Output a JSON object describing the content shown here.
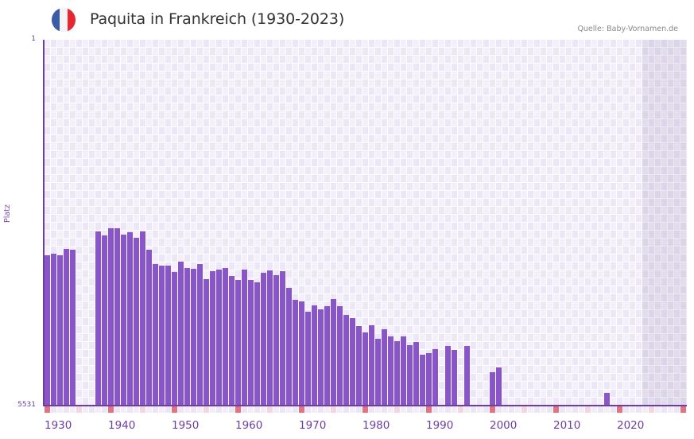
{
  "header": {
    "title": "Paquita in Frankreich (1930-2023)",
    "source": "Quelle: Baby-Vornamen.de",
    "flag": {
      "name": "france-flag",
      "colors": [
        "#3a5ba8",
        "#f4f4f6",
        "#e8262f"
      ]
    }
  },
  "colors": {
    "bar": "#8a55c8",
    "axis": "#6b3fa0",
    "grid_a": "#f3effb",
    "grid_b": "#ece6f7",
    "gridline": "#ffffff",
    "marker_decade": "#e5737f",
    "marker_half": "#f4d6e0",
    "marker_other_a": "#f1edf9",
    "marker_other_b": "#ebe5f6",
    "future_shade": "#e4e0ec"
  },
  "chart_data": {
    "type": "bar",
    "title": "Paquita in Frankreich (1930-2023)",
    "source": "Quelle: Baby-Vornamen.de",
    "xlabel": "",
    "ylabel": "Platz",
    "y_scale": "log (inverted rank)",
    "ylim": [
      5531,
      1
    ],
    "y_tick_labels": [
      "1",
      "5531"
    ],
    "x_range": [
      1930,
      2030
    ],
    "x_tick_labels": [
      "1930",
      "1940",
      "1950",
      "1960",
      "1970",
      "1980",
      "1990",
      "2000",
      "2010",
      "2020"
    ],
    "future_shaded_from": 2024,
    "grid": true,
    "legend": null,
    "points": [
      {
        "year": 1930,
        "rank": 160
      },
      {
        "year": 1931,
        "rank": 154
      },
      {
        "year": 1932,
        "rank": 160
      },
      {
        "year": 1933,
        "rank": 138
      },
      {
        "year": 1934,
        "rank": 141
      },
      {
        "year": 1938,
        "rank": 91
      },
      {
        "year": 1939,
        "rank": 100
      },
      {
        "year": 1940,
        "rank": 85
      },
      {
        "year": 1941,
        "rank": 85
      },
      {
        "year": 1942,
        "rank": 98
      },
      {
        "year": 1943,
        "rank": 93
      },
      {
        "year": 1944,
        "rank": 106
      },
      {
        "year": 1945,
        "rank": 91
      },
      {
        "year": 1946,
        "rank": 141
      },
      {
        "year": 1947,
        "rank": 197
      },
      {
        "year": 1948,
        "rank": 205
      },
      {
        "year": 1949,
        "rank": 205
      },
      {
        "year": 1950,
        "rank": 238
      },
      {
        "year": 1951,
        "rank": 186
      },
      {
        "year": 1952,
        "rank": 216
      },
      {
        "year": 1953,
        "rank": 220
      },
      {
        "year": 1954,
        "rank": 197
      },
      {
        "year": 1955,
        "rank": 281
      },
      {
        "year": 1956,
        "rank": 233
      },
      {
        "year": 1957,
        "rank": 225
      },
      {
        "year": 1958,
        "rank": 216
      },
      {
        "year": 1959,
        "rank": 261
      },
      {
        "year": 1960,
        "rank": 287
      },
      {
        "year": 1961,
        "rank": 225
      },
      {
        "year": 1962,
        "rank": 287
      },
      {
        "year": 1963,
        "rank": 303
      },
      {
        "year": 1964,
        "rank": 242
      },
      {
        "year": 1965,
        "rank": 229
      },
      {
        "year": 1966,
        "rank": 256
      },
      {
        "year": 1967,
        "rank": 233
      },
      {
        "year": 1968,
        "rank": 346
      },
      {
        "year": 1969,
        "rank": 458
      },
      {
        "year": 1970,
        "rank": 475
      },
      {
        "year": 1971,
        "rank": 606
      },
      {
        "year": 1972,
        "rank": 522
      },
      {
        "year": 1973,
        "rank": 573
      },
      {
        "year": 1974,
        "rank": 531
      },
      {
        "year": 1975,
        "rank": 449
      },
      {
        "year": 1976,
        "rank": 531
      },
      {
        "year": 1977,
        "rank": 653
      },
      {
        "year": 1978,
        "rank": 704
      },
      {
        "year": 1979,
        "rank": 850
      },
      {
        "year": 1980,
        "rank": 987
      },
      {
        "year": 1981,
        "rank": 834
      },
      {
        "year": 1982,
        "rank": 1147
      },
      {
        "year": 1983,
        "rank": 916
      },
      {
        "year": 1984,
        "rank": 1084
      },
      {
        "year": 1985,
        "rank": 1213
      },
      {
        "year": 1986,
        "rank": 1084
      },
      {
        "year": 1987,
        "rank": 1332
      },
      {
        "year": 1988,
        "rank": 1235
      },
      {
        "year": 1989,
        "rank": 1668
      },
      {
        "year": 1990,
        "rank": 1605
      },
      {
        "year": 1991,
        "rank": 1463
      },
      {
        "year": 1993,
        "rank": 1357
      },
      {
        "year": 1994,
        "rank": 1490
      },
      {
        "year": 1996,
        "rank": 1357
      },
      {
        "year": 2000,
        "rank": 2519
      },
      {
        "year": 2001,
        "rank": 2252
      },
      {
        "year": 2018,
        "rank": 4098
      }
    ]
  }
}
